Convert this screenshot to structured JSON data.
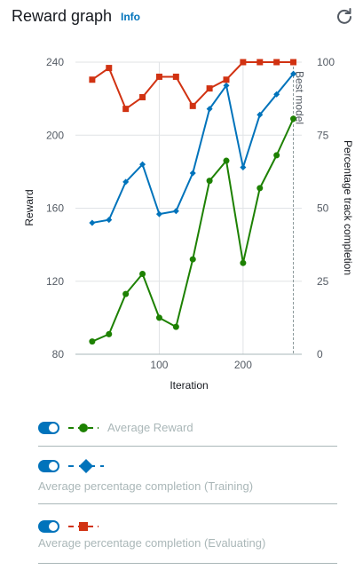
{
  "header": {
    "title": "Reward graph",
    "info": "Info",
    "refresh_icon": "refresh-icon"
  },
  "chart_data": {
    "type": "line",
    "xlabel": "Iteration",
    "ylabel": "Reward",
    "y2label": "Percentage track completion",
    "xlim": [
      0,
      270
    ],
    "ylim": [
      80,
      240
    ],
    "y2lim": [
      0,
      100
    ],
    "xticks": [
      100,
      200
    ],
    "yticks": [
      80,
      120,
      160,
      200,
      240
    ],
    "y2ticks": [
      0,
      25,
      50,
      75,
      100
    ],
    "grid": true,
    "annotation": {
      "label": "Best model",
      "x": 260
    },
    "x": [
      20,
      40,
      60,
      80,
      100,
      120,
      140,
      160,
      180,
      200,
      220,
      240,
      260
    ],
    "series": [
      {
        "name": "Average Reward",
        "axis": "left",
        "color": "#1d8102",
        "marker": "circle",
        "values": [
          87,
          91,
          113,
          124,
          100,
          95,
          132,
          175,
          186,
          130,
          171,
          189,
          209
        ]
      },
      {
        "name": "Average percentage completion (Training)",
        "axis": "right",
        "color": "#0073bb",
        "marker": "diamond",
        "values": [
          45,
          46,
          59,
          65,
          48,
          49,
          62,
          84,
          92,
          64,
          82,
          89,
          96
        ]
      },
      {
        "name": "Average percentage completion (Evaluating)",
        "axis": "right",
        "color": "#d13212",
        "marker": "square",
        "values": [
          94,
          98,
          84,
          88,
          95,
          95,
          85,
          91,
          94,
          100,
          100,
          100,
          100
        ]
      }
    ]
  },
  "legend": [
    {
      "label": "Average Reward",
      "color": "#1d8102",
      "marker": "circle",
      "toggle": "on"
    },
    {
      "label": "Average percentage completion (Training)",
      "color": "#0073bb",
      "marker": "diamond",
      "toggle": "on"
    },
    {
      "label": "Average percentage completion (Evaluating)",
      "color": "#d13212",
      "marker": "square",
      "toggle": "on"
    }
  ]
}
